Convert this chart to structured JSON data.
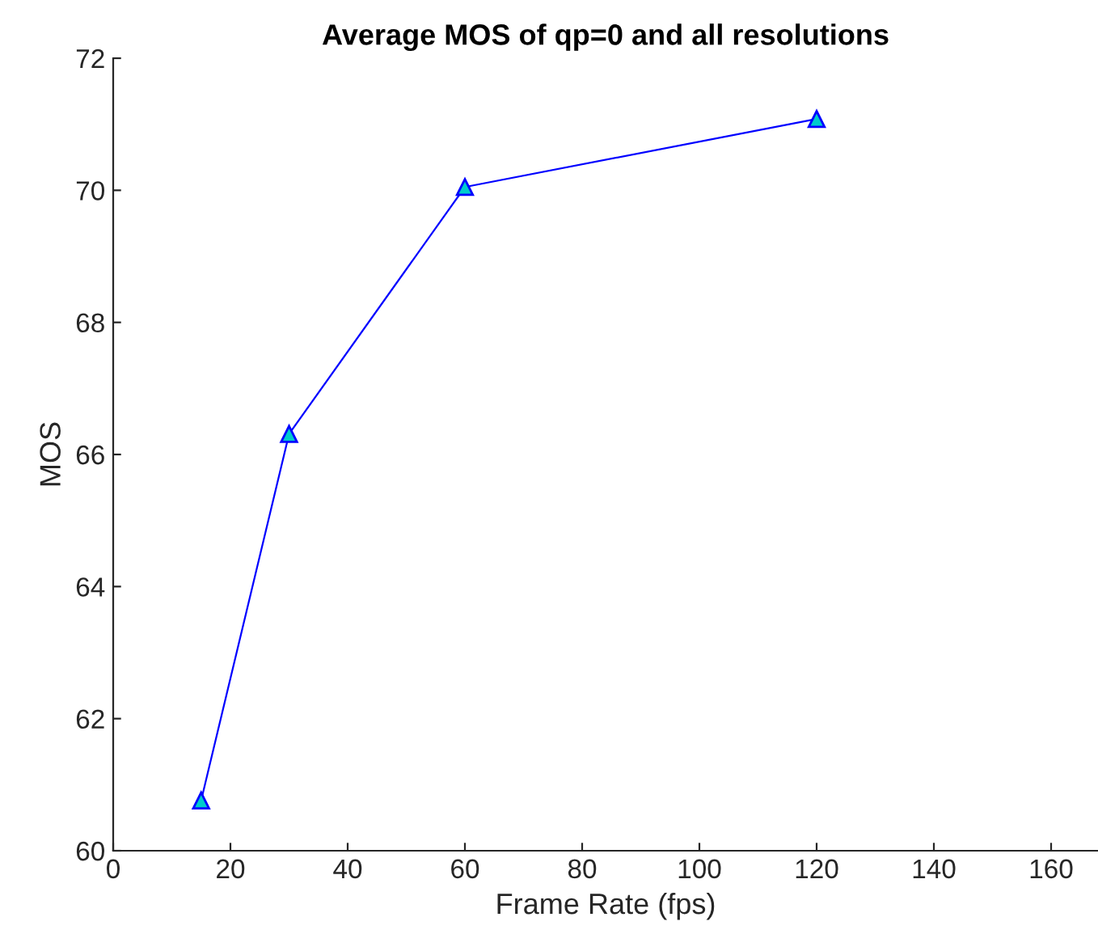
{
  "chart_data": {
    "type": "line",
    "title": "Average MOS of qp=0 and all resolutions",
    "xlabel": "Frame Rate (fps)",
    "ylabel": "MOS",
    "x": [
      15,
      30,
      60,
      120
    ],
    "series": [
      {
        "color": "#0000ff",
        "values": [
          60.76,
          66.31,
          70.05,
          71.08
        ]
      }
    ],
    "marker": "triangle",
    "line_style": "solid",
    "xlim": [
      0,
      168
    ],
    "xticks": [
      0,
      20,
      40,
      60,
      80,
      100,
      120,
      140,
      160
    ],
    "ylim": [
      60,
      72
    ],
    "yticks": [
      60,
      62,
      64,
      66,
      68,
      70,
      72
    ],
    "grid": false,
    "legend": false
  }
}
